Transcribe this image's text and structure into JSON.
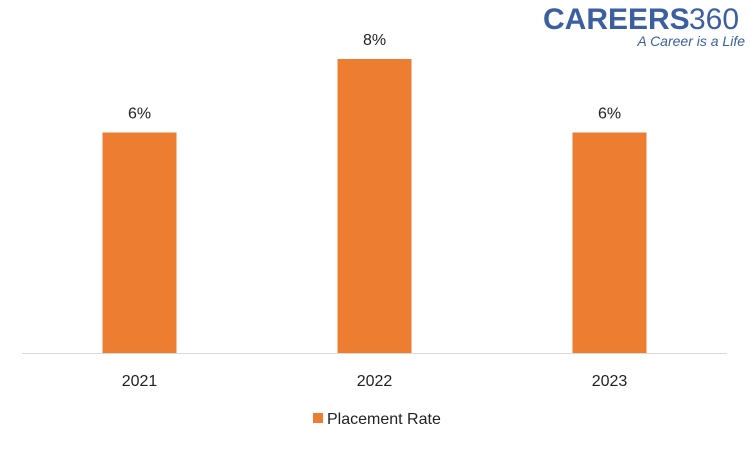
{
  "logo": {
    "brand": "CAREERS",
    "number": "360",
    "tagline": "A Career is a Life",
    "brand_color": "#3b5fa0"
  },
  "chart_data": {
    "type": "bar",
    "categories": [
      "2021",
      "2022",
      "2023"
    ],
    "series": [
      {
        "name": "Placement Rate",
        "values": [
          6,
          8,
          6
        ],
        "labels": [
          "6%",
          "8%",
          "6%"
        ],
        "color": "#ED7D31"
      }
    ],
    "ylim": [
      0,
      8
    ],
    "grid": false,
    "legend": "bottom-center",
    "axis_color": "#d9d9d9"
  }
}
